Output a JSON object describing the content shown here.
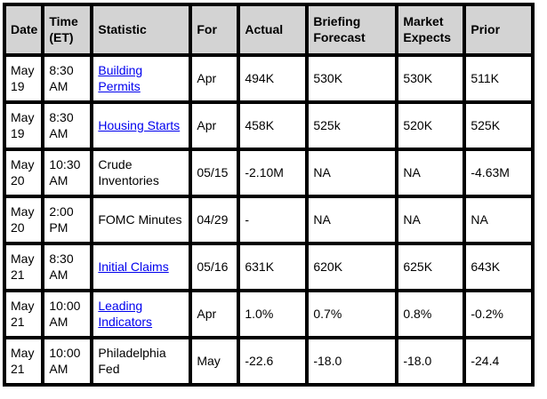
{
  "colors": {
    "header_bg": "#d3d3d3",
    "border": "#000000",
    "link": "#0000ee",
    "text": "#000000",
    "page_bg": "#ffffff"
  },
  "table": {
    "columns": [
      {
        "key": "date",
        "label": "Date"
      },
      {
        "key": "time",
        "label": "Time (ET)"
      },
      {
        "key": "statistic",
        "label": "Statistic"
      },
      {
        "key": "for",
        "label": "For"
      },
      {
        "key": "actual",
        "label": "Actual"
      },
      {
        "key": "briefing_forecast",
        "label": "Briefing Forecast"
      },
      {
        "key": "market_expects",
        "label": "Market Expects"
      },
      {
        "key": "prior",
        "label": "Prior"
      }
    ],
    "rows": [
      {
        "date": "May 19",
        "time": "8:30 AM",
        "statistic": "Building Permits",
        "statistic_is_link": true,
        "for": "Apr",
        "actual": "494K",
        "briefing_forecast": "530K",
        "market_expects": "530K",
        "prior": "511K"
      },
      {
        "date": "May 19",
        "time": "8:30 AM",
        "statistic": "Housing Starts",
        "statistic_is_link": true,
        "for": "Apr",
        "actual": "458K",
        "briefing_forecast": "525k",
        "market_expects": "520K",
        "prior": "525K"
      },
      {
        "date": "May 20",
        "time": "10:30 AM",
        "statistic": "Crude Inventories",
        "statistic_is_link": false,
        "for": "05/15",
        "actual": "-2.10M",
        "briefing_forecast": "NA",
        "market_expects": "NA",
        "prior": "-4.63M"
      },
      {
        "date": "May 20",
        "time": "2:00 PM",
        "statistic": "FOMC Minutes",
        "statistic_is_link": false,
        "for": "04/29",
        "actual": "-",
        "briefing_forecast": "NA",
        "market_expects": "NA",
        "prior": "NA"
      },
      {
        "date": "May 21",
        "time": "8:30 AM",
        "statistic": "Initial Claims",
        "statistic_is_link": true,
        "for": "05/16",
        "actual": "631K",
        "briefing_forecast": "620K",
        "market_expects": "625K",
        "prior": "643K"
      },
      {
        "date": "May 21",
        "time": "10:00 AM",
        "statistic": "Leading Indicators",
        "statistic_is_link": true,
        "for": "Apr",
        "actual": "1.0%",
        "briefing_forecast": "0.7%",
        "market_expects": "0.8%",
        "prior": "-0.2%"
      },
      {
        "date": "May 21",
        "time": "10:00 AM",
        "statistic": "Philadelphia Fed",
        "statistic_is_link": false,
        "for": "May",
        "actual": "-22.6",
        "briefing_forecast": "-18.0",
        "market_expects": "-18.0",
        "prior": "-24.4"
      }
    ]
  }
}
